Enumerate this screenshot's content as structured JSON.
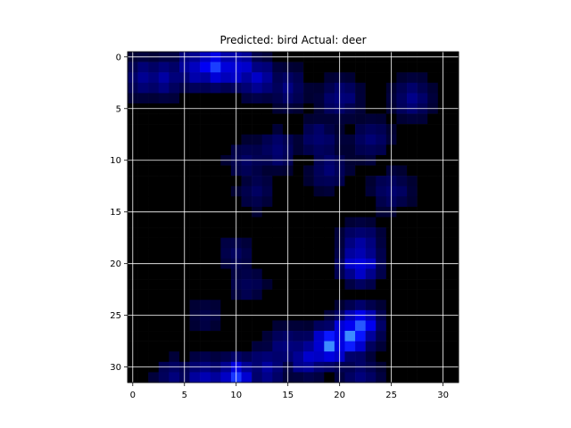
{
  "chart_data": {
    "type": "heatmap",
    "title": "Predicted: bird Actual: deer",
    "xlabel": "",
    "ylabel": "",
    "grid": true,
    "x_ticks": [
      0,
      5,
      10,
      15,
      20,
      25,
      30
    ],
    "y_ticks": [
      0,
      5,
      10,
      15,
      20,
      25,
      30
    ],
    "xlim": [
      -0.5,
      31.5
    ],
    "ylim": [
      31.5,
      -0.5
    ],
    "colormap": "black-to-blue",
    "colors": {
      "low": "#000000",
      "mid": "#0000ff",
      "high": "#3a8cff",
      "grid": "#ffffff"
    },
    "grid_size": [
      32,
      32
    ],
    "blobs": [
      {
        "x": 8,
        "y": 1,
        "v": 0.9
      },
      {
        "x": 6,
        "y": 1,
        "v": 0.6
      },
      {
        "x": 10,
        "y": 1,
        "v": 0.7
      },
      {
        "x": 3,
        "y": 2,
        "v": 0.45
      },
      {
        "x": 12,
        "y": 2,
        "v": 0.5
      },
      {
        "x": 1,
        "y": 2,
        "v": 0.35
      },
      {
        "x": 15,
        "y": 3,
        "v": 0.3
      },
      {
        "x": 20,
        "y": 4,
        "v": 0.35
      },
      {
        "x": 27,
        "y": 4,
        "v": 0.35
      },
      {
        "x": 18,
        "y": 8,
        "v": 0.3
      },
      {
        "x": 23,
        "y": 8,
        "v": 0.3
      },
      {
        "x": 14,
        "y": 9,
        "v": 0.3
      },
      {
        "x": 11,
        "y": 10,
        "v": 0.25
      },
      {
        "x": 19,
        "y": 11,
        "v": 0.3
      },
      {
        "x": 25,
        "y": 13,
        "v": 0.3
      },
      {
        "x": 12,
        "y": 13,
        "v": 0.2
      },
      {
        "x": 22,
        "y": 18,
        "v": 0.4
      },
      {
        "x": 22,
        "y": 20,
        "v": 0.7
      },
      {
        "x": 10,
        "y": 19,
        "v": 0.2
      },
      {
        "x": 11,
        "y": 22,
        "v": 0.2
      },
      {
        "x": 7,
        "y": 25,
        "v": 0.15
      },
      {
        "x": 21,
        "y": 27,
        "v": 1.0
      },
      {
        "x": 19,
        "y": 28,
        "v": 0.95
      },
      {
        "x": 22,
        "y": 26,
        "v": 0.85
      },
      {
        "x": 17,
        "y": 29,
        "v": 0.6
      },
      {
        "x": 15,
        "y": 28,
        "v": 0.35
      },
      {
        "x": 10,
        "y": 31,
        "v": 0.8
      },
      {
        "x": 7,
        "y": 31,
        "v": 0.5
      },
      {
        "x": 13,
        "y": 30,
        "v": 0.45
      },
      {
        "x": 4,
        "y": 31,
        "v": 0.3
      },
      {
        "x": 22,
        "y": 31,
        "v": 0.35
      }
    ]
  }
}
